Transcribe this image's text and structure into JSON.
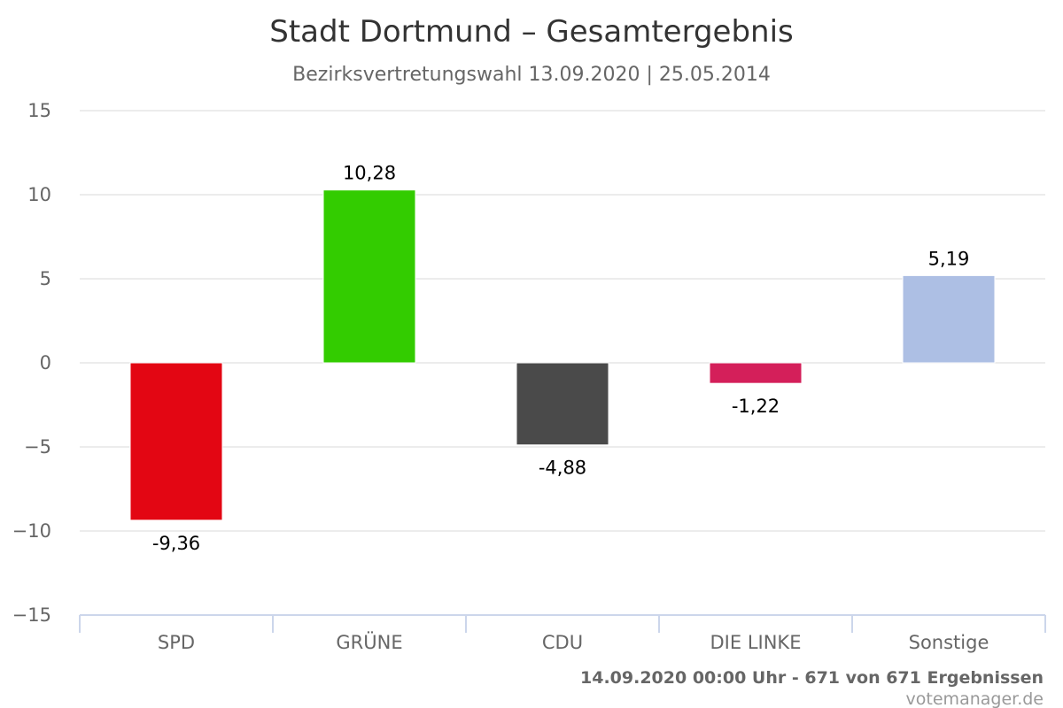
{
  "chart_data": {
    "type": "bar",
    "title": "Stadt Dortmund – Gesamtergebnis",
    "subtitle": "Bezirksvertretungswahl 13.09.2020 | 25.05.2014",
    "categories": [
      "SPD",
      "GRÜNE",
      "CDU",
      "DIE LINKE",
      "Sonstige"
    ],
    "values": [
      -9.36,
      10.28,
      -4.88,
      -1.22,
      5.19
    ],
    "value_labels": [
      "-9,36",
      "10,28",
      "-4,88",
      "-1,22",
      "5,19"
    ],
    "colors": [
      "#e30613",
      "#33cc00",
      "#4a4a4a",
      "#d41f5a",
      "#adbfe4"
    ],
    "ylim": [
      -15,
      15
    ],
    "yticks": [
      15,
      10,
      5,
      0,
      -5,
      -10,
      -15
    ],
    "ytick_labels": [
      "15",
      "10",
      "5",
      "0",
      "−5",
      "−10",
      "−15"
    ],
    "grid": true,
    "legend": "none"
  },
  "footer": {
    "timestamp": "14.09.2020 00:00 Uhr - 671 von 671 Ergebnissen",
    "credit": "votemanager.de"
  },
  "colors": {
    "grid": "#e6e6e6",
    "axis": "#ccd6eb",
    "text": "#666666"
  }
}
